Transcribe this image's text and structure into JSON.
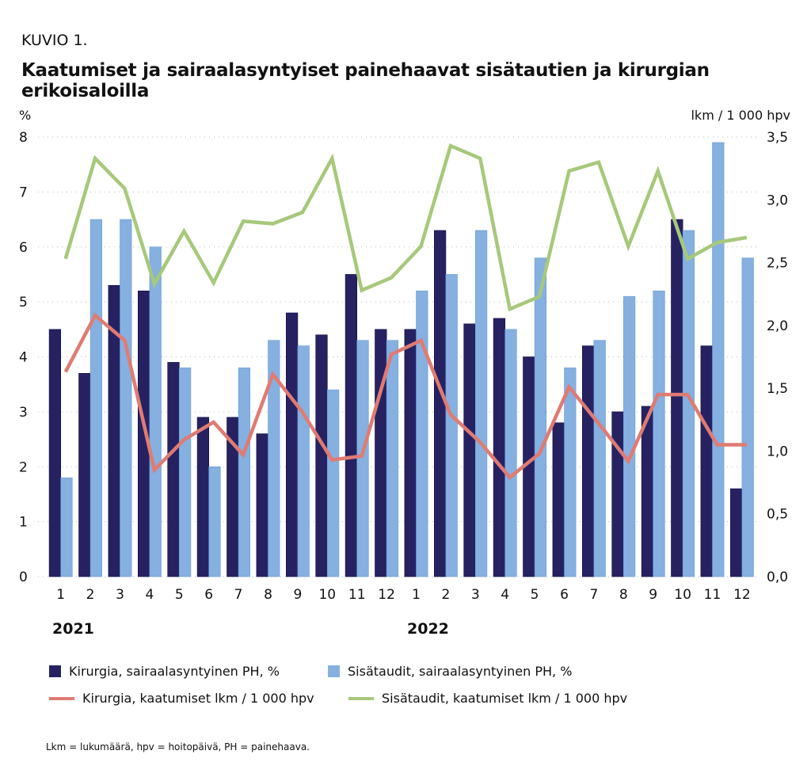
{
  "figure_label": "KUVIO 1.",
  "title": "Kaatumiset ja sairaalasyntyiset painehaavat sisätautien ja kirurgian erikoisaloilla",
  "note": "Lkm = lukumäärä, hpv = hoitopäivä, PH = painehaava.",
  "chart_data": {
    "type": "bar+line",
    "ylabel_left": "%",
    "ylabel_right": "lkm / 1 000 hpv",
    "ylim_left": [
      0,
      8
    ],
    "ylim_right": [
      0,
      3.5
    ],
    "yticks_left": [
      "0",
      "1",
      "2",
      "3",
      "4",
      "5",
      "6",
      "7",
      "8"
    ],
    "yticks_right": [
      "0,0",
      "0,5",
      "1,0",
      "1,5",
      "2,0",
      "2,5",
      "3,0",
      "3,5"
    ],
    "categories": [
      "1",
      "2",
      "3",
      "4",
      "5",
      "6",
      "7",
      "8",
      "9",
      "10",
      "11",
      "12",
      "1",
      "2",
      "3",
      "4",
      "5",
      "6",
      "7",
      "8",
      "9",
      "10",
      "11",
      "12"
    ],
    "years": [
      "2021",
      "2022"
    ],
    "grid": true,
    "legend_position": "bottom",
    "series": [
      {
        "name": "Kirurgia, sairaalasyntyinen PH, %",
        "type": "bar",
        "axis": "left",
        "color": "#262262",
        "values": [
          4.5,
          3.7,
          5.3,
          5.2,
          3.9,
          2.9,
          2.9,
          2.6,
          4.8,
          4.4,
          5.5,
          4.5,
          4.5,
          6.3,
          4.6,
          4.7,
          4.0,
          2.8,
          4.2,
          3.0,
          3.1,
          6.5,
          4.2,
          1.6
        ]
      },
      {
        "name": "Sisätaudit, sairaalasyntyinen PH, %",
        "type": "bar",
        "axis": "left",
        "color": "#85b0e0",
        "values": [
          1.8,
          6.5,
          6.5,
          6.0,
          3.8,
          2.0,
          3.8,
          4.3,
          4.2,
          3.4,
          4.3,
          4.3,
          5.2,
          5.5,
          6.3,
          4.5,
          5.8,
          3.8,
          4.3,
          5.1,
          5.2,
          6.3,
          7.9,
          5.8
        ]
      },
      {
        "name": "Kirurgia, kaatumiset lkm / 1 000 hpv",
        "type": "line",
        "axis": "right",
        "color": "#e07b72",
        "values": [
          1.63,
          2.08,
          1.88,
          0.85,
          1.09,
          1.23,
          0.97,
          1.61,
          1.31,
          0.93,
          0.96,
          1.77,
          1.88,
          1.29,
          1.07,
          0.79,
          0.98,
          1.51,
          1.22,
          0.92,
          1.45,
          1.45,
          1.05,
          1.05
        ]
      },
      {
        "name": "Sisätaudit, kaatumiset lkm / 1 000 hpv",
        "type": "line",
        "axis": "right",
        "color": "#a6c97a",
        "values": [
          2.53,
          3.33,
          3.09,
          2.33,
          2.75,
          2.34,
          2.83,
          2.81,
          2.9,
          3.33,
          2.28,
          2.38,
          2.63,
          3.43,
          3.33,
          2.13,
          2.23,
          3.23,
          3.3,
          2.63,
          3.23,
          2.53,
          2.66,
          2.7
        ]
      }
    ]
  }
}
